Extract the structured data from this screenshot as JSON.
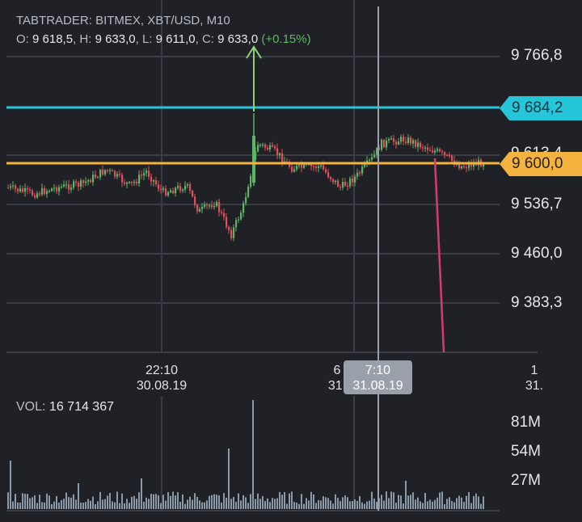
{
  "header": {
    "title": "TABTRADER: BITMEX, XBT/USD, M10",
    "open_label": "O:",
    "open": "9 618,5",
    "high_label": "H:",
    "high": "9 633,0",
    "low_label": "L:",
    "low": "9 611,0",
    "close_label": "C:",
    "close": "9 633,0",
    "change": "(+0.15%)"
  },
  "price_axis": [
    "9 766,8",
    "9 536,7",
    "9 460,0",
    "9 383,3"
  ],
  "price_tags": {
    "alert": "9 684,2",
    "current": "9 600,0",
    "hidden_partial": "9 613,4"
  },
  "time_axis": [
    {
      "time": "22:10",
      "date": "30.08.19"
    },
    {
      "time": "6",
      "date": "31."
    },
    {
      "time": "1",
      "date": "31."
    }
  ],
  "crosshair": {
    "time": "7:10",
    "date": "31.08.19"
  },
  "volume": {
    "label": "VOL:",
    "value": "16 714 367",
    "ticks": [
      "81M",
      "54M",
      "27M"
    ]
  },
  "colors": {
    "background": "#1f2127",
    "up": "#5fb563",
    "down": "#e0505a",
    "alert_line": "#26c6da",
    "price_line": "#f4b23f",
    "volume_bar": "#8a9aa8",
    "arrow": "#8fd46a",
    "drawn_line": "#d63a72"
  }
}
